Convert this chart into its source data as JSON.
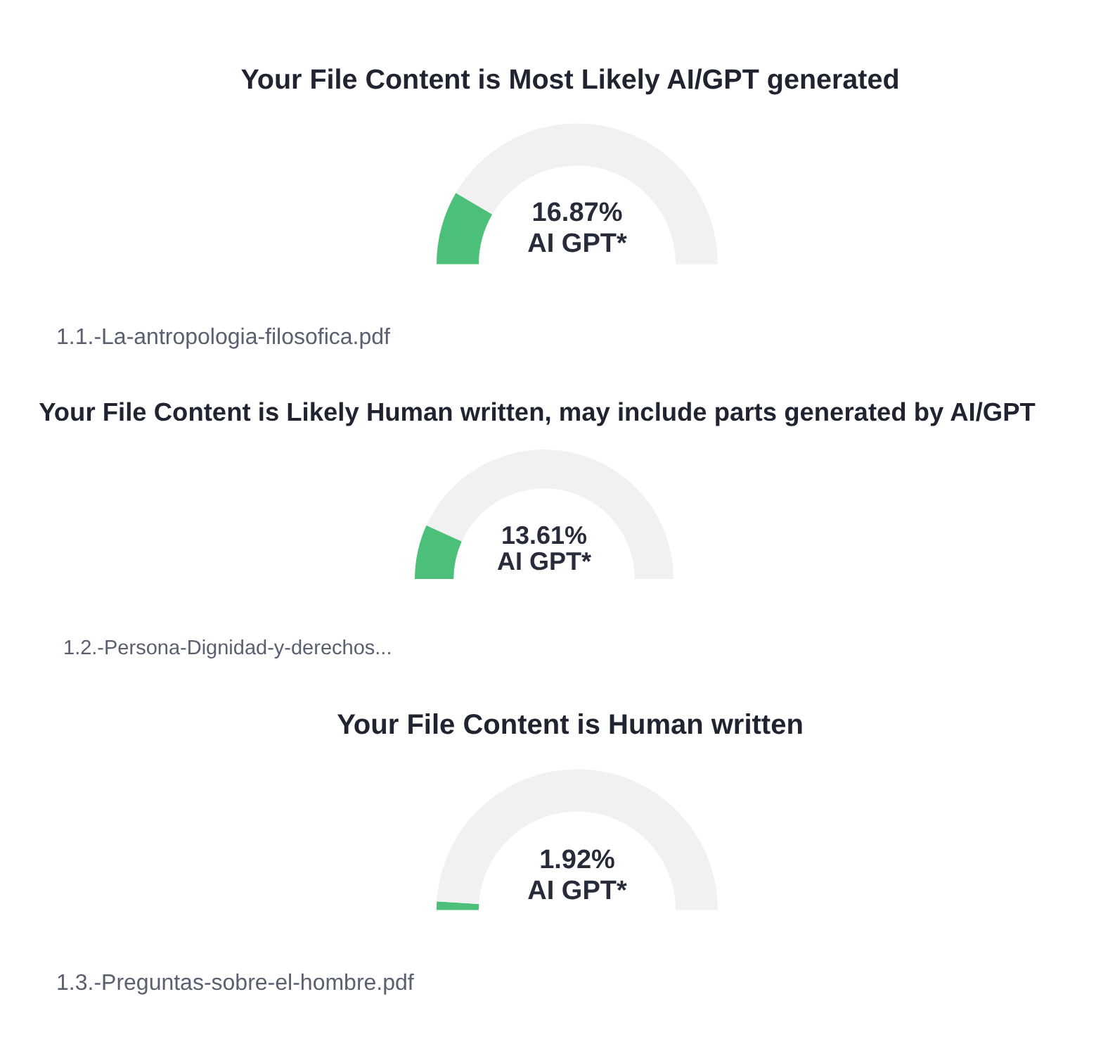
{
  "chart_data": [
    {
      "type": "donut",
      "title": "Your File Content is Most Likely AI/GPT generated",
      "categories": [
        null,
        null
      ],
      "values": [
        16.87,
        83.13
      ],
      "colors": [
        "#4cc07a",
        "#f1f1f1"
      ],
      "annotations": [
        "16.87%",
        "AI GPT*",
        "1.1.-La-antropologia-filosofica.pdf"
      ]
    },
    {
      "type": "donut",
      "title": "Your File Content is Likely Human written, may include parts generated by AI/GPT",
      "categories": [
        null,
        null
      ],
      "values": [
        13.61,
        86.39
      ],
      "colors": [
        "#4cc07a",
        "#f1f1f1"
      ],
      "annotations": [
        "13.61%",
        "AI GPT*",
        "1.2.-Persona-Dignidad-y-derechos..."
      ]
    },
    {
      "type": "donut",
      "title": "Your File Content is Human written",
      "categories": [
        null,
        null
      ],
      "values": [
        1.92,
        98.08
      ],
      "colors": [
        "#4cc07a",
        "#f1f1f1"
      ],
      "annotations": [
        "1.92%",
        "AI GPT*",
        "1.3.-Preguntas-sobre-el-hombre.pdf"
      ]
    }
  ]
}
